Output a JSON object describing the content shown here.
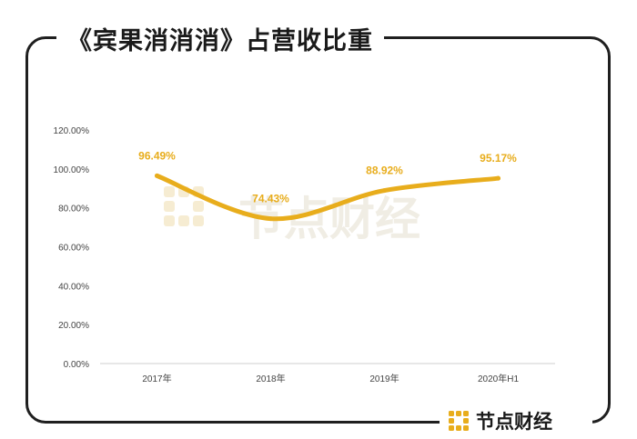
{
  "page": {
    "title": "《宾果消消消》占营收比重",
    "brand": "节点财经",
    "watermark": "节点财经",
    "accent_color": "#e8ad1c",
    "frame_color": "#1f1f1f"
  },
  "chart_data": {
    "type": "line",
    "title": "《宾果消消消》占营收比重",
    "categories": [
      "2017年",
      "2018年",
      "2019年",
      "2020年H1"
    ],
    "series": [
      {
        "values": [
          96.49,
          74.43,
          88.92,
          95.17
        ],
        "labels": [
          "96.49%",
          "74.43%",
          "88.92%",
          "95.17%"
        ]
      }
    ],
    "yticks": [
      "0.00%",
      "20.00%",
      "40.00%",
      "60.00%",
      "80.00%",
      "100.00%",
      "120.00%"
    ],
    "ylim": [
      0,
      120
    ],
    "grid": false,
    "legend": "none",
    "line_color": "#e8ad1c",
    "smooth": true
  }
}
